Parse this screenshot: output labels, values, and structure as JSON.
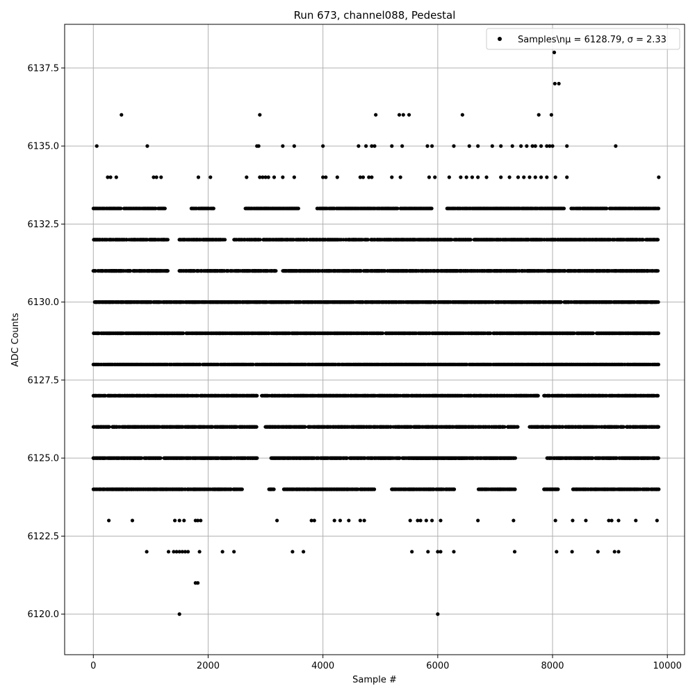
{
  "chart_data": {
    "type": "scatter",
    "title": "Run 673, channel088, Pedestal",
    "xlabel": "Sample #",
    "ylabel": "ADC Counts",
    "xlim": [
      -500,
      10300
    ],
    "ylim": [
      6118.7,
      6138.9
    ],
    "xticks": [
      0,
      2000,
      4000,
      6000,
      8000,
      10000
    ],
    "xtick_labels": [
      "0",
      "2000",
      "4000",
      "6000",
      "8000",
      "10000"
    ],
    "yticks": [
      6120.0,
      6122.5,
      6125.0,
      6127.5,
      6130.0,
      6132.5,
      6135.0,
      6137.5
    ],
    "ytick_labels": [
      "6120.0",
      "6122.5",
      "6125.0",
      "6127.5",
      "6130.0",
      "6132.5",
      "6135.0",
      "6137.5"
    ],
    "grid": true,
    "legend": {
      "position": "top-right",
      "label": "Samples\\nμ = 6128.79, σ = 2.33"
    },
    "series": [
      {
        "name": "Samples\\nμ = 6128.79, σ = 2.33",
        "color": "#000000",
        "marker": "circle",
        "x_start": 0,
        "x_end": 9850,
        "level_bands": [
          {
            "y": 6133,
            "ranges": [
              [
                0,
                1250
              ],
              [
                1700,
                2100
              ],
              [
                2650,
                3600
              ],
              [
                3900,
                5300
              ],
              [
                5350,
                5900
              ],
              [
                6150,
                7000
              ],
              [
                7000,
                8200
              ],
              [
                8300,
                9850
              ]
            ]
          },
          {
            "y": 6132,
            "ranges": [
              [
                0,
                1300
              ],
              [
                1500,
                2300
              ],
              [
                2450,
                9850
              ]
            ]
          },
          {
            "y": 6131,
            "ranges": [
              [
                0,
                1300
              ],
              [
                1500,
                3200
              ],
              [
                3300,
                9850
              ]
            ]
          },
          {
            "y": 6130,
            "ranges": [
              [
                0,
                9850
              ]
            ]
          },
          {
            "y": 6129,
            "ranges": [
              [
                0,
                9850
              ]
            ]
          },
          {
            "y": 6128,
            "ranges": [
              [
                0,
                9850
              ]
            ]
          },
          {
            "y": 6127,
            "ranges": [
              [
                0,
                2850
              ],
              [
                2900,
                7750
              ],
              [
                7850,
                9850
              ]
            ]
          },
          {
            "y": 6126,
            "ranges": [
              [
                0,
                2850
              ],
              [
                3000,
                7400
              ],
              [
                7600,
                9850
              ]
            ]
          },
          {
            "y": 6125,
            "ranges": [
              [
                0,
                2850
              ],
              [
                3100,
                4900
              ],
              [
                4900,
                6450
              ],
              [
                5550,
                7350
              ],
              [
                7900,
                9850
              ]
            ]
          },
          {
            "y": 6124,
            "ranges": [
              [
                0,
                2600
              ],
              [
                3050,
                3150
              ],
              [
                3300,
                4900
              ],
              [
                5200,
                6300
              ],
              [
                6700,
                7350
              ],
              [
                7850,
                8100
              ],
              [
                8350,
                9850
              ]
            ]
          }
        ],
        "sparse_points": [
          [
            60,
            6135
          ],
          [
            490,
            6136
          ],
          [
            940,
            6135
          ],
          [
            2850,
            6135
          ],
          [
            2880,
            6135
          ],
          [
            2900,
            6136
          ],
          [
            3300,
            6135
          ],
          [
            3500,
            6135
          ],
          [
            4000,
            6135
          ],
          [
            4620,
            6135
          ],
          [
            4750,
            6135
          ],
          [
            4850,
            6135
          ],
          [
            4900,
            6135
          ],
          [
            4920,
            6136
          ],
          [
            5200,
            6135
          ],
          [
            5330,
            6136
          ],
          [
            5380,
            6135
          ],
          [
            5400,
            6136
          ],
          [
            5500,
            6136
          ],
          [
            5820,
            6135
          ],
          [
            5900,
            6135
          ],
          [
            6280,
            6135
          ],
          [
            6430,
            6136
          ],
          [
            6550,
            6135
          ],
          [
            6700,
            6135
          ],
          [
            6950,
            6135
          ],
          [
            7100,
            6135
          ],
          [
            7300,
            6135
          ],
          [
            7450,
            6135
          ],
          [
            7550,
            6135
          ],
          [
            7650,
            6135
          ],
          [
            7700,
            6135
          ],
          [
            7760,
            6136
          ],
          [
            7800,
            6135
          ],
          [
            7900,
            6135
          ],
          [
            7950,
            6135
          ],
          [
            7980,
            6136
          ],
          [
            8000,
            6135
          ],
          [
            8030,
            6138
          ],
          [
            8040,
            6137
          ],
          [
            8110,
            6137
          ],
          [
            8250,
            6135
          ],
          [
            9100,
            6135
          ],
          [
            250,
            6134
          ],
          [
            300,
            6134
          ],
          [
            400,
            6134
          ],
          [
            1050,
            6134
          ],
          [
            1100,
            6134
          ],
          [
            1180,
            6134
          ],
          [
            1830,
            6134
          ],
          [
            2040,
            6134
          ],
          [
            2670,
            6134
          ],
          [
            2900,
            6134
          ],
          [
            2950,
            6134
          ],
          [
            3000,
            6134
          ],
          [
            3050,
            6134
          ],
          [
            3150,
            6134
          ],
          [
            3300,
            6134
          ],
          [
            3500,
            6134
          ],
          [
            4000,
            6134
          ],
          [
            4050,
            6134
          ],
          [
            4250,
            6134
          ],
          [
            4650,
            6134
          ],
          [
            4700,
            6134
          ],
          [
            4800,
            6134
          ],
          [
            4850,
            6134
          ],
          [
            5200,
            6134
          ],
          [
            5350,
            6134
          ],
          [
            5850,
            6134
          ],
          [
            5950,
            6134
          ],
          [
            6200,
            6134
          ],
          [
            6400,
            6134
          ],
          [
            6500,
            6134
          ],
          [
            6600,
            6134
          ],
          [
            6700,
            6134
          ],
          [
            6850,
            6134
          ],
          [
            7100,
            6134
          ],
          [
            7250,
            6134
          ],
          [
            7400,
            6134
          ],
          [
            7500,
            6134
          ],
          [
            7600,
            6134
          ],
          [
            7700,
            6134
          ],
          [
            7800,
            6134
          ],
          [
            7900,
            6134
          ],
          [
            8050,
            6134
          ],
          [
            8250,
            6134
          ],
          [
            9850,
            6134
          ],
          [
            270,
            6123
          ],
          [
            680,
            6123
          ],
          [
            1420,
            6123
          ],
          [
            1500,
            6123
          ],
          [
            1580,
            6123
          ],
          [
            1780,
            6123
          ],
          [
            1820,
            6123
          ],
          [
            1870,
            6123
          ],
          [
            3200,
            6123
          ],
          [
            3800,
            6123
          ],
          [
            3850,
            6123
          ],
          [
            4200,
            6123
          ],
          [
            4300,
            6123
          ],
          [
            4450,
            6123
          ],
          [
            4650,
            6123
          ],
          [
            4720,
            6123
          ],
          [
            5520,
            6123
          ],
          [
            5650,
            6123
          ],
          [
            5700,
            6123
          ],
          [
            5800,
            6123
          ],
          [
            5900,
            6123
          ],
          [
            6050,
            6123
          ],
          [
            6700,
            6123
          ],
          [
            7320,
            6123
          ],
          [
            8050,
            6123
          ],
          [
            8350,
            6123
          ],
          [
            8580,
            6123
          ],
          [
            8980,
            6123
          ],
          [
            9030,
            6123
          ],
          [
            9150,
            6123
          ],
          [
            9450,
            6123
          ],
          [
            9820,
            6123
          ],
          [
            930,
            6122
          ],
          [
            1310,
            6122
          ],
          [
            1400,
            6122
          ],
          [
            1450,
            6122
          ],
          [
            1500,
            6122
          ],
          [
            1550,
            6122
          ],
          [
            1600,
            6122
          ],
          [
            1650,
            6122
          ],
          [
            1850,
            6122
          ],
          [
            2250,
            6122
          ],
          [
            2450,
            6122
          ],
          [
            3470,
            6122
          ],
          [
            3660,
            6122
          ],
          [
            5550,
            6122
          ],
          [
            5830,
            6122
          ],
          [
            6000,
            6122
          ],
          [
            6050,
            6122
          ],
          [
            6280,
            6122
          ],
          [
            7340,
            6122
          ],
          [
            8070,
            6122
          ],
          [
            8340,
            6122
          ],
          [
            8790,
            6122
          ],
          [
            9080,
            6122
          ],
          [
            9150,
            6122
          ],
          [
            1780,
            6121
          ],
          [
            1820,
            6121
          ],
          [
            1500,
            6120
          ],
          [
            6000,
            6120
          ]
        ]
      }
    ]
  }
}
